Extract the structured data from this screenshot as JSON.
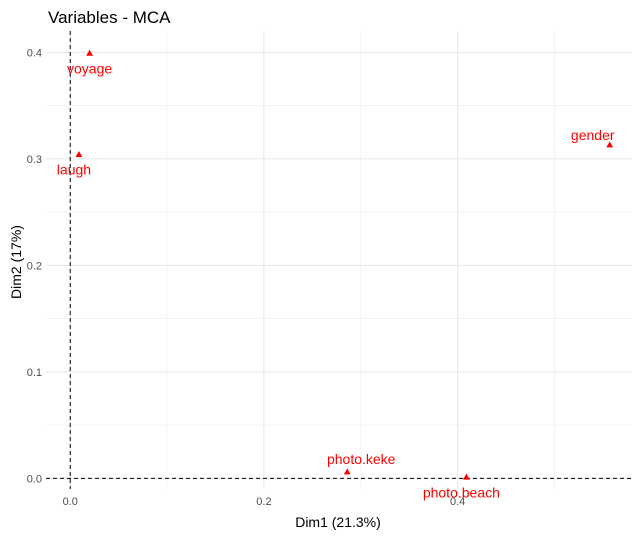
{
  "chart_data": {
    "type": "scatter",
    "title": "Variables - MCA",
    "xlabel": "Dim1 (21.3%)",
    "ylabel": "Dim2 (17%)",
    "xlim": [
      -0.025,
      0.58
    ],
    "ylim": [
      -0.01,
      0.42
    ],
    "x_ticks": [
      {
        "value": 0.0,
        "label": "0.0"
      },
      {
        "value": 0.2,
        "label": "0.2"
      },
      {
        "value": 0.4,
        "label": "0.4"
      }
    ],
    "y_ticks": [
      {
        "value": 0.0,
        "label": "0.0"
      },
      {
        "value": 0.1,
        "label": "0.1"
      },
      {
        "value": 0.2,
        "label": "0.2"
      },
      {
        "value": 0.3,
        "label": "0.3"
      },
      {
        "value": 0.4,
        "label": "0.4"
      }
    ],
    "grid": true,
    "reference_lines": {
      "x": 0,
      "y": 0
    },
    "marker": "triangle",
    "color": "#ff0000",
    "points": [
      {
        "label": "voyage",
        "x": 0.02,
        "y": 0.399,
        "label_position": "below"
      },
      {
        "label": "laugh",
        "x": 0.009,
        "y": 0.304,
        "label_position": "below-left"
      },
      {
        "label": "gender",
        "x": 0.557,
        "y": 0.313,
        "label_position": "above-left"
      },
      {
        "label": "photo.keke",
        "x": 0.286,
        "y": 0.006,
        "label_position": "above"
      },
      {
        "label": "photo.beach",
        "x": 0.409,
        "y": 0.001,
        "label_position": "below-left"
      }
    ]
  }
}
